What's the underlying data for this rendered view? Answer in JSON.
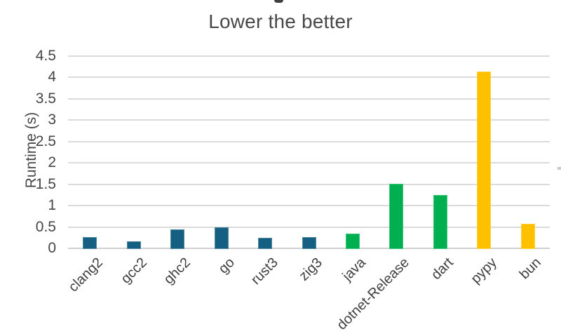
{
  "chart_data": {
    "type": "bar",
    "title": "Lower the better",
    "ylabel": "Runtime (s)",
    "xlabel": "",
    "categories": [
      "clang2",
      "gcc2",
      "ghc2",
      "go",
      "rust3",
      "zig3",
      "java",
      "dotnet-Release",
      "dart",
      "pypy",
      "bun"
    ],
    "values": [
      0.27,
      0.16,
      0.45,
      0.49,
      0.24,
      0.26,
      0.34,
      1.51,
      1.24,
      4.14,
      0.57
    ],
    "bar_colors": [
      "#156082",
      "#156082",
      "#156082",
      "#156082",
      "#156082",
      "#156082",
      "#00B050",
      "#00B050",
      "#00B050",
      "#FFC000",
      "#FFC000"
    ],
    "ylim": [
      0,
      4.5
    ],
    "yticks": [
      4.5,
      4,
      3.5,
      3,
      2.5,
      2,
      1.5,
      1,
      0.5,
      0
    ],
    "ytick_labels": [
      "4.5",
      "4",
      "3.5",
      "3",
      "2.5",
      "2",
      "1.5",
      "1",
      "0.5",
      "0"
    ],
    "grid": true,
    "legend": "none",
    "colors": {
      "compiled_group": "#156082",
      "vm_group": "#00B050",
      "interpreted_group": "#FFC000",
      "gridline": "#dbdbdb",
      "text": "#454545"
    }
  }
}
